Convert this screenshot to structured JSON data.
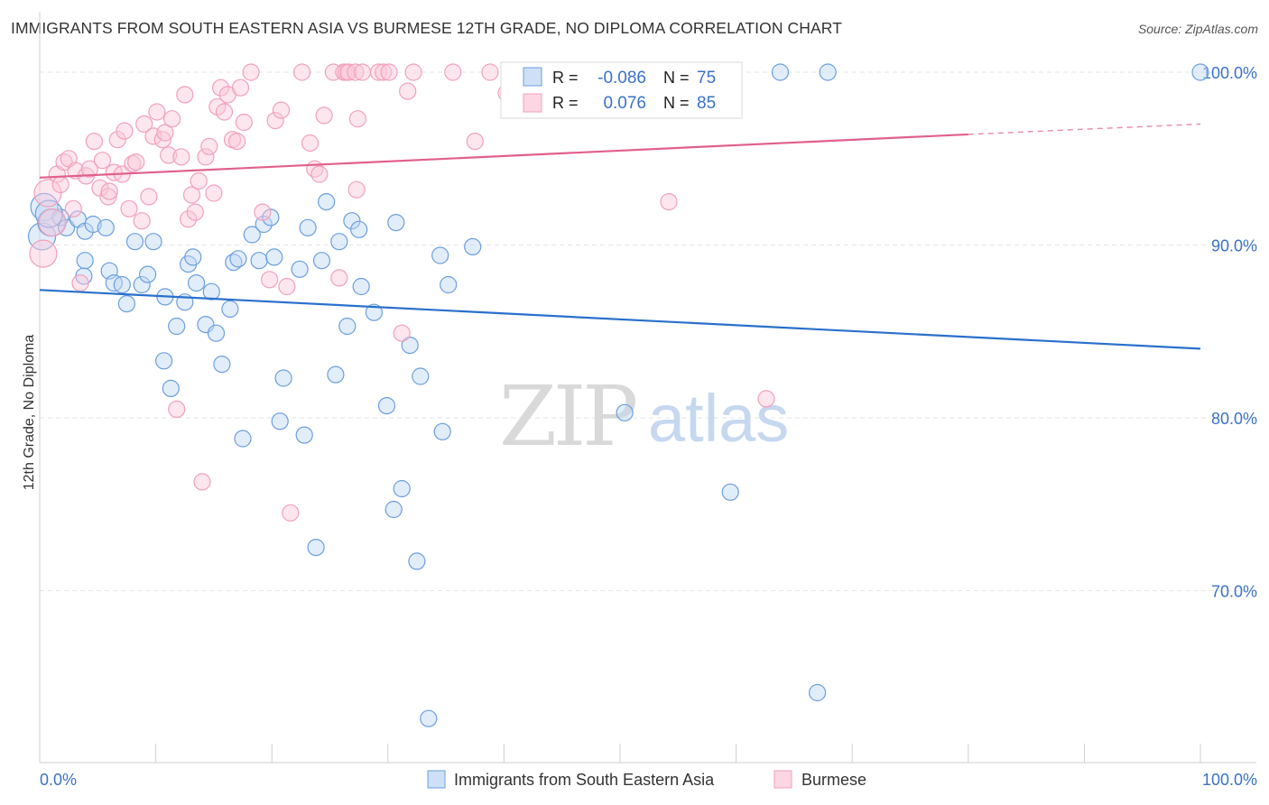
{
  "title": "IMMIGRANTS FROM SOUTH EASTERN ASIA VS BURMESE 12TH GRADE, NO DIPLOMA CORRELATION CHART",
  "source": "Source: ZipAtlas.com",
  "watermark": {
    "zip": "ZIP",
    "atlas": "atlas"
  },
  "colors": {
    "blue": "#6a9fe0",
    "blue_line": "#2a70cc",
    "pink": "#f2a0bc",
    "pink_line": "#e0608c",
    "axis_label": "#3a72c8"
  },
  "legend_top": [
    {
      "r_label": "R =",
      "r_value": "-0.086",
      "n_label": "N =",
      "n_value": "75"
    },
    {
      "r_label": "R =",
      "r_value": "0.076",
      "n_label": "N =",
      "n_value": "85"
    }
  ],
  "legend_bottom": [
    "Immigrants from South Eastern Asia",
    "Burmese"
  ],
  "chart_data": {
    "type": "scatter",
    "title": "IMMIGRANTS FROM SOUTH EASTERN ASIA VS BURMESE 12TH GRADE, NO DIPLOMA CORRELATION CHART",
    "xlabel": "",
    "ylabel": "12th Grade, No Diploma",
    "xlim": [
      0,
      100
    ],
    "ylim": [
      60,
      103.5
    ],
    "x_tick_labels": [
      "0.0%",
      "100.0%"
    ],
    "y_ticks": [
      70,
      80,
      90,
      100
    ],
    "y_tick_labels": [
      "70.0%",
      "80.0%",
      "90.0%",
      "100.0%"
    ],
    "grid": true,
    "series": [
      {
        "name": "Immigrants from South Eastern Asia",
        "trend": [
          [
            0,
            87.4
          ],
          [
            100,
            84.0
          ]
        ],
        "points": [
          [
            0.2,
            90.5
          ],
          [
            0.4,
            92.2
          ],
          [
            1.0,
            91.3
          ],
          [
            1.8,
            91.6
          ],
          [
            2.3,
            91.0
          ],
          [
            3.3,
            91.5
          ],
          [
            3.9,
            90.8
          ],
          [
            4.6,
            91.2
          ],
          [
            3.8,
            88.2
          ],
          [
            3.9,
            89.1
          ],
          [
            5.7,
            91.0
          ],
          [
            6.0,
            88.5
          ],
          [
            6.4,
            87.8
          ],
          [
            7.1,
            87.7
          ],
          [
            7.5,
            86.6
          ],
          [
            8.2,
            90.2
          ],
          [
            8.8,
            87.7
          ],
          [
            9.3,
            88.3
          ],
          [
            9.8,
            90.2
          ],
          [
            10.7,
            83.3
          ],
          [
            10.8,
            87.0
          ],
          [
            11.3,
            81.7
          ],
          [
            11.8,
            85.3
          ],
          [
            12.5,
            86.7
          ],
          [
            12.8,
            88.9
          ],
          [
            13.2,
            89.3
          ],
          [
            13.5,
            87.8
          ],
          [
            14.3,
            85.4
          ],
          [
            14.8,
            87.3
          ],
          [
            15.2,
            84.9
          ],
          [
            15.7,
            83.1
          ],
          [
            16.4,
            86.3
          ],
          [
            16.7,
            89.0
          ],
          [
            17.1,
            89.2
          ],
          [
            17.5,
            78.8
          ],
          [
            18.3,
            90.6
          ],
          [
            18.9,
            89.1
          ],
          [
            19.3,
            91.2
          ],
          [
            19.9,
            91.6
          ],
          [
            20.2,
            89.3
          ],
          [
            20.7,
            79.8
          ],
          [
            21.0,
            82.3
          ],
          [
            22.4,
            88.6
          ],
          [
            22.8,
            79.0
          ],
          [
            23.1,
            91.0
          ],
          [
            23.8,
            72.5
          ],
          [
            24.3,
            89.1
          ],
          [
            24.7,
            92.5
          ],
          [
            25.5,
            82.5
          ],
          [
            25.8,
            90.2
          ],
          [
            26.5,
            85.3
          ],
          [
            26.9,
            91.4
          ],
          [
            27.5,
            90.9
          ],
          [
            27.7,
            87.6
          ],
          [
            28.8,
            86.1
          ],
          [
            29.9,
            80.7
          ],
          [
            30.5,
            74.7
          ],
          [
            30.7,
            91.3
          ],
          [
            31.2,
            75.9
          ],
          [
            31.9,
            84.2
          ],
          [
            32.5,
            71.7
          ],
          [
            32.8,
            82.4
          ],
          [
            33.5,
            62.6
          ],
          [
            34.5,
            89.4
          ],
          [
            34.7,
            79.2
          ],
          [
            35.2,
            87.7
          ],
          [
            37.3,
            89.9
          ],
          [
            42.3,
            100.0
          ],
          [
            50.4,
            80.3
          ],
          [
            59.5,
            75.7
          ],
          [
            63.8,
            100.0
          ],
          [
            67.0,
            64.1
          ],
          [
            67.9,
            100.0
          ],
          [
            100.0,
            100.0
          ],
          [
            0.8,
            91.8
          ]
        ]
      },
      {
        "name": "Burmese",
        "trend": [
          [
            0,
            93.9
          ],
          [
            80,
            96.4
          ]
        ],
        "trend_dashed": [
          [
            80,
            96.4
          ],
          [
            100,
            97.0
          ]
        ],
        "points": [
          [
            0.3,
            89.5
          ],
          [
            0.7,
            93.0
          ],
          [
            1.1,
            91.3
          ],
          [
            1.5,
            94.1
          ],
          [
            1.8,
            93.5
          ],
          [
            2.1,
            94.8
          ],
          [
            2.5,
            95.0
          ],
          [
            2.9,
            92.1
          ],
          [
            3.1,
            94.3
          ],
          [
            3.5,
            87.8
          ],
          [
            4.0,
            94.0
          ],
          [
            4.3,
            94.4
          ],
          [
            4.7,
            96.0
          ],
          [
            5.2,
            93.3
          ],
          [
            5.4,
            94.9
          ],
          [
            5.9,
            92.8
          ],
          [
            6.0,
            93.1
          ],
          [
            6.4,
            94.2
          ],
          [
            6.7,
            96.1
          ],
          [
            7.1,
            94.1
          ],
          [
            7.3,
            96.6
          ],
          [
            7.7,
            92.1
          ],
          [
            8.0,
            94.7
          ],
          [
            8.3,
            94.8
          ],
          [
            8.8,
            91.4
          ],
          [
            9.0,
            97.0
          ],
          [
            9.4,
            92.8
          ],
          [
            9.8,
            96.3
          ],
          [
            10.1,
            97.7
          ],
          [
            10.6,
            96.1
          ],
          [
            10.8,
            96.5
          ],
          [
            11.1,
            95.2
          ],
          [
            11.4,
            97.3
          ],
          [
            11.8,
            80.5
          ],
          [
            12.2,
            95.1
          ],
          [
            12.5,
            98.7
          ],
          [
            12.8,
            91.5
          ],
          [
            13.1,
            92.9
          ],
          [
            13.4,
            91.9
          ],
          [
            13.7,
            93.7
          ],
          [
            14.0,
            76.3
          ],
          [
            14.3,
            95.1
          ],
          [
            14.6,
            95.7
          ],
          [
            15.0,
            93.0
          ],
          [
            15.3,
            98.0
          ],
          [
            15.6,
            99.1
          ],
          [
            15.9,
            97.7
          ],
          [
            16.2,
            98.7
          ],
          [
            16.6,
            96.1
          ],
          [
            17.0,
            96.0
          ],
          [
            17.3,
            99.1
          ],
          [
            17.6,
            97.1
          ],
          [
            18.2,
            100.0
          ],
          [
            19.2,
            91.9
          ],
          [
            19.8,
            88.0
          ],
          [
            20.3,
            97.2
          ],
          [
            20.8,
            97.8
          ],
          [
            21.3,
            87.6
          ],
          [
            21.6,
            74.5
          ],
          [
            22.6,
            100.0
          ],
          [
            23.3,
            95.9
          ],
          [
            23.7,
            94.4
          ],
          [
            24.1,
            94.1
          ],
          [
            24.5,
            97.5
          ],
          [
            25.3,
            100.0
          ],
          [
            25.8,
            88.1
          ],
          [
            26.2,
            100.0
          ],
          [
            26.4,
            100.0
          ],
          [
            26.6,
            100.0
          ],
          [
            27.2,
            100.0
          ],
          [
            27.3,
            93.2
          ],
          [
            27.4,
            97.3
          ],
          [
            27.8,
            100.0
          ],
          [
            29.2,
            100.0
          ],
          [
            29.6,
            100.0
          ],
          [
            30.1,
            100.0
          ],
          [
            31.2,
            84.9
          ],
          [
            31.7,
            98.9
          ],
          [
            32.2,
            100.0
          ],
          [
            35.6,
            100.0
          ],
          [
            37.5,
            96.0
          ],
          [
            38.8,
            100.0
          ],
          [
            40.2,
            98.8
          ],
          [
            54.2,
            92.5
          ],
          [
            62.6,
            81.1
          ]
        ]
      }
    ]
  }
}
